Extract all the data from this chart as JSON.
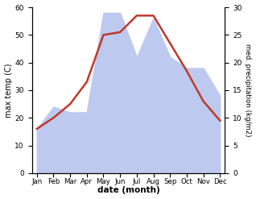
{
  "months": [
    "Jan",
    "Feb",
    "Mar",
    "Apr",
    "May",
    "Jun",
    "Jul",
    "Aug",
    "Sep",
    "Oct",
    "Nov",
    "Dec"
  ],
  "temperature": [
    16.0,
    20.0,
    25.0,
    33.0,
    50.0,
    51.0,
    57.0,
    57.0,
    47.0,
    37.0,
    26.0,
    19.0
  ],
  "precipitation": [
    8.0,
    12.0,
    11.0,
    11.0,
    29.0,
    29.0,
    21.0,
    28.0,
    21.0,
    19.0,
    19.0,
    14.0
  ],
  "temp_color": "#c0392b",
  "precip_fill_color": "#bdc9ee",
  "background_color": "#ffffff",
  "ylabel_left": "max temp (C)",
  "ylabel_right": "med. precipitation (kg/m2)",
  "xlabel": "date (month)",
  "ylim_left": [
    0,
    60
  ],
  "ylim_right": [
    0,
    30
  ],
  "yticks_left": [
    0,
    10,
    20,
    30,
    40,
    50,
    60
  ],
  "yticks_right": [
    0,
    5,
    10,
    15,
    20,
    25,
    30
  ]
}
